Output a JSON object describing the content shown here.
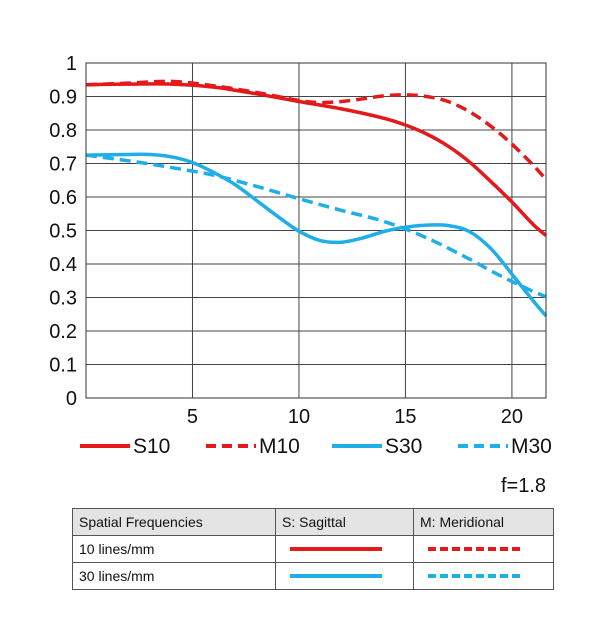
{
  "chart_data": {
    "type": "line",
    "xlim": [
      0,
      21.6
    ],
    "ylim": [
      0,
      1
    ],
    "xticks": [
      {
        "value": 5,
        "label": "5"
      },
      {
        "value": 10,
        "label": "10"
      },
      {
        "value": 15,
        "label": "15"
      },
      {
        "value": 20,
        "label": "20"
      }
    ],
    "yticks": [
      {
        "value": 0,
        "label": "0"
      },
      {
        "value": 0.1,
        "label": "0.1"
      },
      {
        "value": 0.2,
        "label": "0.2"
      },
      {
        "value": 0.3,
        "label": "0.3"
      },
      {
        "value": 0.4,
        "label": "0.4"
      },
      {
        "value": 0.5,
        "label": "0.5"
      },
      {
        "value": 0.6,
        "label": "0.6"
      },
      {
        "value": 0.7,
        "label": "0.7"
      },
      {
        "value": 0.8,
        "label": "0.8"
      },
      {
        "value": 0.9,
        "label": "0.9"
      },
      {
        "value": 1,
        "label": "1"
      }
    ],
    "grid": true,
    "legend_position": "bottom",
    "annotation": "f=1.8",
    "series": [
      {
        "name": "S10",
        "color": "#e3191c",
        "dash": "solid",
        "x": [
          0,
          2,
          4,
          6,
          8,
          10,
          12,
          14,
          15,
          16,
          17,
          18,
          19,
          20,
          21,
          21.6
        ],
        "y": [
          0.935,
          0.937,
          0.937,
          0.928,
          0.908,
          0.885,
          0.863,
          0.835,
          0.815,
          0.788,
          0.752,
          0.705,
          0.647,
          0.585,
          0.518,
          0.485
        ]
      },
      {
        "name": "M10",
        "color": "#e3191c",
        "dash": "dashed",
        "x": [
          0,
          2,
          4,
          6,
          8,
          10,
          11,
          12,
          13,
          14,
          15,
          16,
          17,
          18,
          19,
          20,
          21,
          21.6
        ],
        "y": [
          0.935,
          0.94,
          0.945,
          0.932,
          0.912,
          0.888,
          0.882,
          0.885,
          0.893,
          0.902,
          0.905,
          0.9,
          0.885,
          0.855,
          0.812,
          0.758,
          0.695,
          0.652
        ]
      },
      {
        "name": "S30",
        "color": "#1eaee8",
        "dash": "solid",
        "x": [
          0,
          2,
          3,
          4,
          5,
          6,
          7,
          8,
          9,
          10,
          11,
          12,
          13,
          14,
          15,
          16,
          17,
          18,
          19,
          20,
          21,
          21.6
        ],
        "y": [
          0.725,
          0.727,
          0.727,
          0.72,
          0.703,
          0.673,
          0.637,
          0.59,
          0.542,
          0.498,
          0.47,
          0.465,
          0.478,
          0.497,
          0.51,
          0.516,
          0.515,
          0.497,
          0.447,
          0.37,
          0.29,
          0.245
        ]
      },
      {
        "name": "M30",
        "color": "#1eaee8",
        "dash": "dashed",
        "x": [
          0,
          2,
          4,
          6,
          8,
          10,
          12,
          14,
          16,
          18,
          19,
          20,
          21,
          21.6
        ],
        "y": [
          0.725,
          0.708,
          0.688,
          0.665,
          0.632,
          0.595,
          0.56,
          0.527,
          0.478,
          0.415,
          0.38,
          0.348,
          0.318,
          0.302
        ]
      }
    ]
  },
  "key_table": {
    "headers": [
      "Spatial Frequencies",
      "S: Sagittal",
      "M: Meridional"
    ],
    "rows": [
      {
        "label": "10 lines/mm",
        "color": "#e3191c"
      },
      {
        "label": "30 lines/mm",
        "color": "#1eaee8"
      }
    ]
  }
}
